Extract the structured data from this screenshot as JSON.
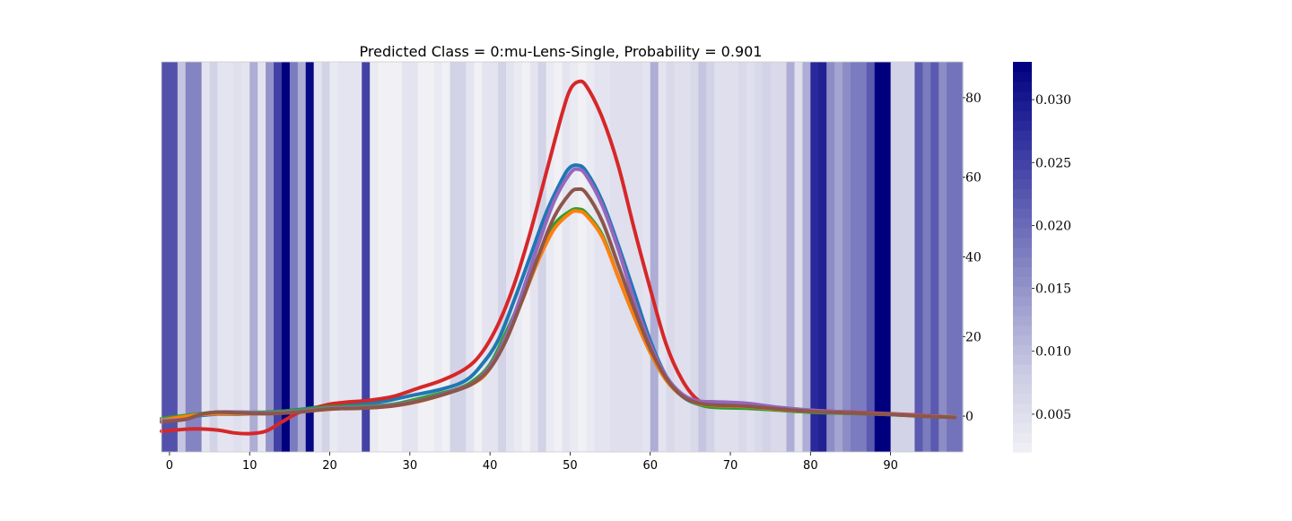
{
  "chart_data": {
    "type": "line",
    "title": "Predicted Class = 0:mu-Lens-Single, Probability = 0.901",
    "xlabel": "",
    "ylabel": "",
    "xlim": [
      -1,
      99
    ],
    "ylim": [
      -9,
      89
    ],
    "xticks": [
      "0",
      "10",
      "20",
      "30",
      "40",
      "50",
      "60",
      "70",
      "80",
      "90"
    ],
    "yticks": [
      "0",
      "20",
      "40",
      "60",
      "80"
    ],
    "grid": false,
    "legend": "none",
    "series": [
      {
        "color": "#1f77b4",
        "peak": 63,
        "points": [
          [
            0,
            -0.5
          ],
          [
            3,
            0
          ],
          [
            6,
            0.5
          ],
          [
            9,
            0.5
          ],
          [
            12,
            0.8
          ],
          [
            16,
            1.6
          ],
          [
            20,
            2.6
          ],
          [
            24,
            3.1
          ],
          [
            27,
            3.8
          ],
          [
            30,
            5.1
          ],
          [
            34,
            6.8
          ],
          [
            37,
            9
          ],
          [
            39,
            13
          ],
          [
            41,
            19
          ],
          [
            43,
            29
          ],
          [
            45,
            40
          ],
          [
            47,
            51
          ],
          [
            49,
            59.5
          ],
          [
            50,
            62.5
          ],
          [
            51,
            63
          ],
          [
            52,
            61.5
          ],
          [
            54,
            54
          ],
          [
            56,
            43
          ],
          [
            58,
            31
          ],
          [
            60,
            19
          ],
          [
            62,
            10
          ],
          [
            64,
            5
          ],
          [
            66,
            3
          ],
          [
            68,
            2.5
          ],
          [
            72,
            2.2
          ],
          [
            76,
            1.6
          ],
          [
            80,
            1.2
          ],
          [
            85,
            0.8
          ],
          [
            90,
            0.5
          ],
          [
            94,
            0.1
          ],
          [
            98,
            -0.2
          ]
        ]
      },
      {
        "color": "#d62728",
        "peak": 84,
        "points": [
          [
            -1,
            -3.8
          ],
          [
            3,
            -3.2
          ],
          [
            6,
            -3.5
          ],
          [
            8,
            -4.2
          ],
          [
            10,
            -4.4
          ],
          [
            12,
            -3.8
          ],
          [
            14,
            -1.5
          ],
          [
            16,
            0.8
          ],
          [
            18,
            2
          ],
          [
            20,
            3
          ],
          [
            22,
            3.5
          ],
          [
            25,
            4
          ],
          [
            28,
            5
          ],
          [
            31,
            7
          ],
          [
            34,
            9
          ],
          [
            37,
            12
          ],
          [
            39,
            16
          ],
          [
            41,
            23
          ],
          [
            43,
            33
          ],
          [
            45,
            46
          ],
          [
            47,
            61
          ],
          [
            49,
            76
          ],
          [
            50,
            82
          ],
          [
            51,
            84
          ],
          [
            52,
            83
          ],
          [
            54,
            75
          ],
          [
            56,
            63
          ],
          [
            58,
            47
          ],
          [
            60,
            32
          ],
          [
            62,
            18
          ],
          [
            64,
            9
          ],
          [
            66,
            4
          ],
          [
            68,
            3
          ],
          [
            72,
            2.2
          ],
          [
            76,
            1.8
          ],
          [
            80,
            1.4
          ],
          [
            85,
            1
          ],
          [
            90,
            0.6
          ],
          [
            94,
            0.2
          ],
          [
            98,
            -0.3
          ]
        ]
      },
      {
        "color": "#2ca02c",
        "peak": 52,
        "points": [
          [
            -1,
            -0.6
          ],
          [
            3,
            0.4
          ],
          [
            6,
            1
          ],
          [
            9,
            1
          ],
          [
            12,
            1
          ],
          [
            16,
            1.5
          ],
          [
            20,
            2.3
          ],
          [
            24,
            2.5
          ],
          [
            28,
            3
          ],
          [
            32,
            4.8
          ],
          [
            36,
            6.9
          ],
          [
            38,
            9
          ],
          [
            40,
            13
          ],
          [
            42,
            21
          ],
          [
            44,
            30
          ],
          [
            46,
            40
          ],
          [
            48,
            48
          ],
          [
            50,
            51.5
          ],
          [
            51,
            52
          ],
          [
            52,
            51
          ],
          [
            54,
            45.5
          ],
          [
            56,
            35
          ],
          [
            58,
            25
          ],
          [
            60,
            16
          ],
          [
            62,
            9
          ],
          [
            64,
            5
          ],
          [
            66,
            3
          ],
          [
            68,
            2.2
          ],
          [
            72,
            2
          ],
          [
            76,
            1.5
          ],
          [
            80,
            1
          ],
          [
            85,
            0.7
          ],
          [
            90,
            0.4
          ],
          [
            94,
            0
          ],
          [
            98,
            -0.3
          ]
        ]
      },
      {
        "color": "#ff7f0e",
        "peak": 51.5,
        "points": [
          [
            -1,
            -1
          ],
          [
            3,
            0.2
          ],
          [
            6,
            0.6
          ],
          [
            10,
            0.6
          ],
          [
            14,
            0.8
          ],
          [
            18,
            1.4
          ],
          [
            22,
            2
          ],
          [
            26,
            2.2
          ],
          [
            30,
            3.2
          ],
          [
            34,
            5.3
          ],
          [
            38,
            8.3
          ],
          [
            40,
            12
          ],
          [
            42,
            20
          ],
          [
            44,
            29
          ],
          [
            46,
            39
          ],
          [
            48,
            47
          ],
          [
            50,
            51
          ],
          [
            51,
            51.5
          ],
          [
            52,
            50.5
          ],
          [
            54,
            45
          ],
          [
            56,
            35
          ],
          [
            58,
            25
          ],
          [
            60,
            16
          ],
          [
            62,
            9
          ],
          [
            64,
            5
          ],
          [
            66,
            3.2
          ],
          [
            68,
            2.7
          ],
          [
            72,
            2.4
          ],
          [
            76,
            1.7
          ],
          [
            80,
            1.2
          ],
          [
            85,
            0.8
          ],
          [
            90,
            0.5
          ],
          [
            94,
            0.1
          ],
          [
            98,
            -0.2
          ]
        ]
      },
      {
        "color": "#9467bd",
        "peak": 62,
        "points": [
          [
            -1,
            -1.1
          ],
          [
            2,
            -0.8
          ],
          [
            4,
            0.5
          ],
          [
            6,
            1
          ],
          [
            9,
            1
          ],
          [
            12,
            0.8
          ],
          [
            16,
            1.2
          ],
          [
            20,
            2
          ],
          [
            24,
            2.2
          ],
          [
            28,
            2.8
          ],
          [
            32,
            4.3
          ],
          [
            36,
            6.8
          ],
          [
            38,
            8.5
          ],
          [
            40,
            12.5
          ],
          [
            42,
            20
          ],
          [
            44,
            31
          ],
          [
            46,
            43
          ],
          [
            48,
            54
          ],
          [
            50,
            61
          ],
          [
            51,
            62
          ],
          [
            52,
            60.5
          ],
          [
            54,
            53
          ],
          [
            56,
            42
          ],
          [
            58,
            29
          ],
          [
            60,
            18
          ],
          [
            62,
            10
          ],
          [
            64,
            5.5
          ],
          [
            66,
            3.8
          ],
          [
            68,
            3.6
          ],
          [
            72,
            3.2
          ],
          [
            76,
            2.2
          ],
          [
            80,
            1.5
          ],
          [
            85,
            0.9
          ],
          [
            90,
            0.5
          ],
          [
            94,
            0.1
          ],
          [
            98,
            -0.3
          ]
        ]
      },
      {
        "color": "#8c564b",
        "peak": 57,
        "points": [
          [
            -1,
            -1.5
          ],
          [
            2,
            -0.8
          ],
          [
            4,
            0.5
          ],
          [
            6,
            1
          ],
          [
            9,
            0.8
          ],
          [
            12,
            0.6
          ],
          [
            16,
            1
          ],
          [
            20,
            1.8
          ],
          [
            24,
            2
          ],
          [
            28,
            2.6
          ],
          [
            32,
            4.2
          ],
          [
            36,
            6.6
          ],
          [
            38,
            8.4
          ],
          [
            40,
            12
          ],
          [
            42,
            19
          ],
          [
            44,
            29
          ],
          [
            46,
            40
          ],
          [
            48,
            50
          ],
          [
            50,
            56
          ],
          [
            51,
            57
          ],
          [
            52,
            56
          ],
          [
            54,
            49
          ],
          [
            56,
            38
          ],
          [
            58,
            27
          ],
          [
            60,
            17
          ],
          [
            62,
            9.5
          ],
          [
            64,
            5
          ],
          [
            66,
            3.3
          ],
          [
            68,
            2.8
          ],
          [
            72,
            2.5
          ],
          [
            76,
            1.8
          ],
          [
            80,
            1.2
          ],
          [
            85,
            0.8
          ],
          [
            90,
            0.4
          ],
          [
            94,
            0
          ],
          [
            98,
            -0.3
          ]
        ]
      }
    ],
    "heatmap": {
      "x_range": [
        -1,
        99
      ],
      "values": [
        0.023,
        0.023,
        0.009,
        0.017,
        0.017,
        0.004,
        0.007,
        0.004,
        0.004,
        0.005,
        0.004,
        0.012,
        0.004,
        0.015,
        0.025,
        0.033,
        0.018,
        0.012,
        0.032,
        0.004,
        0.007,
        0.003,
        0.004,
        0.004,
        0.004,
        0.025,
        0.003,
        0.002,
        0.002,
        0.002,
        0.004,
        0.004,
        0.002,
        0.002,
        0.003,
        0.002,
        0.007,
        0.007,
        0.004,
        0.002,
        0.004,
        0.004,
        0.007,
        0.004,
        0.003,
        0.002,
        0.004,
        0.007,
        0.003,
        0.002,
        0.004,
        0.003,
        0.002,
        0.003,
        0.004,
        0.004,
        0.005,
        0.005,
        0.005,
        0.005,
        0.004,
        0.012,
        0.004,
        0.006,
        0.005,
        0.005,
        0.006,
        0.009,
        0.007,
        0.005,
        0.005,
        0.005,
        0.006,
        0.005,
        0.006,
        0.007,
        0.006,
        0.006,
        0.012,
        0.005,
        0.012,
        0.028,
        0.029,
        0.016,
        0.013,
        0.016,
        0.018,
        0.018,
        0.022,
        0.033,
        0.033,
        0.007,
        0.007,
        0.007,
        0.022,
        0.018,
        0.022,
        0.016,
        0.019,
        0.019
      ],
      "colorbar": {
        "vmin": 0.002,
        "vmax": 0.033,
        "ticks": [
          "0.005",
          "0.010",
          "0.015",
          "0.020",
          "0.025",
          "0.030"
        ],
        "colormap": [
          "#f0f0f5",
          "#cccce4",
          "#9999cc",
          "#6666b6",
          "#3333a0",
          "#00007f"
        ]
      }
    }
  }
}
